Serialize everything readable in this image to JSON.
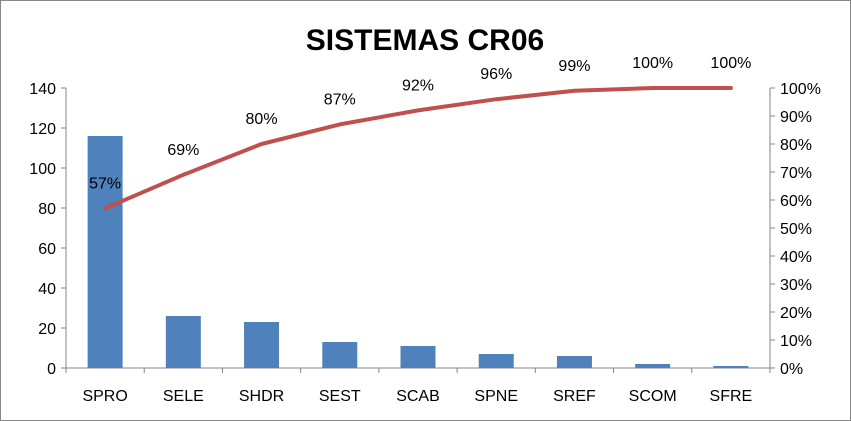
{
  "chart_data": {
    "type": "bar",
    "title": "SISTEMAS CR06",
    "categories": [
      "SPRO",
      "SELE",
      "SHDR",
      "SEST",
      "SCAB",
      "SPNE",
      "SREF",
      "SCOM",
      "SFRE"
    ],
    "series": [
      {
        "type": "bar",
        "axis": "left",
        "values": [
          116,
          26,
          23,
          13,
          11,
          7,
          6,
          2,
          1
        ]
      },
      {
        "type": "line",
        "axis": "right",
        "values": [
          0.57,
          0.69,
          0.8,
          0.87,
          0.92,
          0.96,
          0.99,
          1.0,
          1.0
        ],
        "data_labels": [
          "57%",
          "69%",
          "80%",
          "87%",
          "92%",
          "96%",
          "99%",
          "100%",
          "100%"
        ]
      }
    ],
    "y_left": {
      "min": 0,
      "max": 140,
      "step": 20,
      "tick_labels": [
        "0",
        "20",
        "40",
        "60",
        "80",
        "100",
        "120",
        "140"
      ]
    },
    "y_right": {
      "min": 0,
      "max": 1,
      "step": 0.1,
      "tick_labels": [
        "0%",
        "10%",
        "20%",
        "30%",
        "40%",
        "50%",
        "60%",
        "70%",
        "80%",
        "90%",
        "100%"
      ]
    },
    "grid": false,
    "legend": "none",
    "colors": {
      "bar": "#4F81BD",
      "line": "#C0504D",
      "axis": "#868686"
    }
  }
}
